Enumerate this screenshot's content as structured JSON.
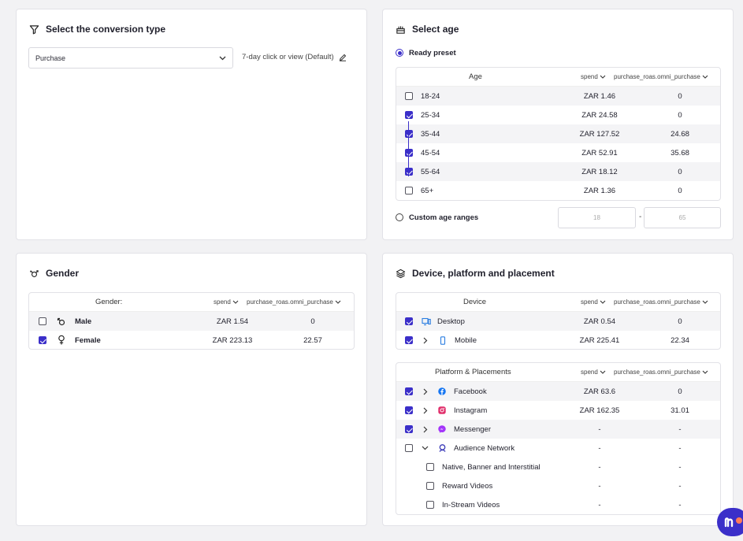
{
  "conversion": {
    "title": "Select the conversion type",
    "selected": "Purchase",
    "window": "7-day click or view (Default)"
  },
  "age": {
    "title": "Select age",
    "ready_preset_label": "Ready preset",
    "custom_label": "Custom age ranges",
    "custom_from": "18",
    "custom_to": "65",
    "dash": "-",
    "headers": {
      "name": "Age",
      "spend": "spend",
      "roas": "purchase_roas.omni_purchase"
    },
    "rows": [
      {
        "label": "18-24",
        "spend": "ZAR 1.46",
        "roas": "0",
        "checked": false
      },
      {
        "label": "25-34",
        "spend": "ZAR 24.58",
        "roas": "0",
        "checked": true
      },
      {
        "label": "35-44",
        "spend": "ZAR 127.52",
        "roas": "24.68",
        "checked": true
      },
      {
        "label": "45-54",
        "spend": "ZAR 52.91",
        "roas": "35.68",
        "checked": true
      },
      {
        "label": "55-64",
        "spend": "ZAR 18.12",
        "roas": "0",
        "checked": true
      },
      {
        "label": "65+",
        "spend": "ZAR 1.36",
        "roas": "0",
        "checked": false
      }
    ]
  },
  "gender": {
    "title": "Gender",
    "headers": {
      "name": "Gender:",
      "spend": "spend",
      "roas": "purchase_roas.omni_purchase"
    },
    "rows": [
      {
        "label": "Male",
        "spend": "ZAR 1.54",
        "roas": "0",
        "checked": false
      },
      {
        "label": "Female",
        "spend": "ZAR 223.13",
        "roas": "22.57",
        "checked": true
      }
    ]
  },
  "device": {
    "title": "Device, platform and placement",
    "headers": {
      "name": "Device",
      "spend": "spend",
      "roas": "purchase_roas.omni_purchase"
    },
    "rows": [
      {
        "label": "Desktop",
        "spend": "ZAR 0.54",
        "roas": "0",
        "checked": true
      },
      {
        "label": "Mobile",
        "spend": "ZAR 225.41",
        "roas": "22.34",
        "checked": true
      }
    ],
    "platform_headers": {
      "name": "Platform & Placements",
      "spend": "spend",
      "roas": "purchase_roas.omni_purchase"
    },
    "platforms": [
      {
        "label": "Facebook",
        "spend": "ZAR 63.6",
        "roas": "0",
        "checked": true
      },
      {
        "label": "Instagram",
        "spend": "ZAR 162.35",
        "roas": "31.01",
        "checked": true
      },
      {
        "label": "Messenger",
        "spend": "-",
        "roas": "-",
        "checked": true
      },
      {
        "label": "Audience Network",
        "spend": "-",
        "roas": "-",
        "checked": false
      }
    ],
    "placements": [
      {
        "label": "Native, Banner and Interstitial",
        "spend": "-",
        "roas": "-",
        "checked": false
      },
      {
        "label": "Reward Videos",
        "spend": "-",
        "roas": "-",
        "checked": false
      },
      {
        "label": "In-Stream Videos",
        "spend": "-",
        "roas": "-",
        "checked": false
      }
    ]
  },
  "colors": {
    "accent": "#3b2fc9"
  }
}
